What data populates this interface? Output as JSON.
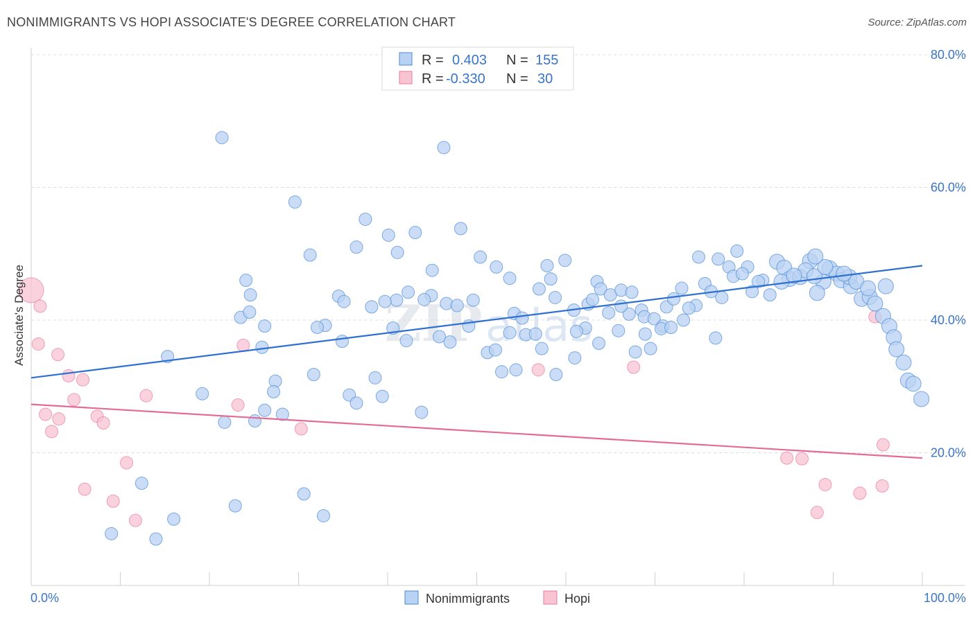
{
  "title": "NONIMMIGRANTS VS HOPI ASSOCIATE'S DEGREE CORRELATION CHART",
  "source": "Source: ZipAtlas.com",
  "colors": {
    "blue": "#4a8ad6",
    "blue_fill": "#b9d2f3",
    "pink": "#e87aa0",
    "pink_fill": "#f8c3d3",
    "axis_text": "#3a74c9"
  },
  "legend": {
    "rows": [
      {
        "r_label": "R =",
        "r_value": "0.403",
        "n_label": "N =",
        "n_value": "155",
        "color": "blue"
      },
      {
        "r_label": "R =",
        "r_value": "-0.330",
        "n_label": "N =",
        "n_value": "30",
        "color": "pink"
      }
    ]
  },
  "bottom_legend": [
    "Nonimmigrants",
    "Hopi"
  ],
  "chart_data": {
    "type": "scatter",
    "xlabel": "",
    "ylabel": "Associate's Degree",
    "xlim": [
      0,
      100
    ],
    "ylim": [
      0,
      80
    ],
    "x_tick_labels": [
      "0.0%",
      "100.0%"
    ],
    "y_tick_labels": [
      "20.0%",
      "40.0%",
      "60.0%",
      "80.0%"
    ],
    "y_ticks": [
      20,
      40,
      60,
      80
    ],
    "grid": "horizontal dashed",
    "series": [
      {
        "name": "Nonimmigrants",
        "color": "blue",
        "trend": [
          [
            0,
            31.3
          ],
          [
            100,
            48.2
          ]
        ],
        "points": [
          [
            21.4,
            67.5
          ],
          [
            46.3,
            66.0
          ],
          [
            29.6,
            57.8
          ],
          [
            37.5,
            55.2
          ],
          [
            40.1,
            52.8
          ],
          [
            43.1,
            53.2
          ],
          [
            48.2,
            53.8
          ],
          [
            36.5,
            51.0
          ],
          [
            41.1,
            50.2
          ],
          [
            45.0,
            47.5
          ],
          [
            31.3,
            49.8
          ],
          [
            50.4,
            49.5
          ],
          [
            52.2,
            48.0
          ],
          [
            57.9,
            48.2
          ],
          [
            59.9,
            49.0
          ],
          [
            53.7,
            46.3
          ],
          [
            58.3,
            46.2
          ],
          [
            24.1,
            46.0
          ],
          [
            24.6,
            43.8
          ],
          [
            23.5,
            40.4
          ],
          [
            24.5,
            41.2
          ],
          [
            26.2,
            39.1
          ],
          [
            34.5,
            43.6
          ],
          [
            38.2,
            42.0
          ],
          [
            35.1,
            42.8
          ],
          [
            42.3,
            44.2
          ],
          [
            41.0,
            43.0
          ],
          [
            44.9,
            43.7
          ],
          [
            46.6,
            42.5
          ],
          [
            49.6,
            43.0
          ],
          [
            47.8,
            42.2
          ],
          [
            54.2,
            41.0
          ],
          [
            55.1,
            40.3
          ],
          [
            57.0,
            44.7
          ],
          [
            58.8,
            43.4
          ],
          [
            60.9,
            41.5
          ],
          [
            62.5,
            42.4
          ],
          [
            63.5,
            45.8
          ],
          [
            63.9,
            44.7
          ],
          [
            65.0,
            43.8
          ],
          [
            66.2,
            44.5
          ],
          [
            67.4,
            44.2
          ],
          [
            68.5,
            41.5
          ],
          [
            67.1,
            40.9
          ],
          [
            68.8,
            40.5
          ],
          [
            69.9,
            40.2
          ],
          [
            70.9,
            39.1
          ],
          [
            71.3,
            42.0
          ],
          [
            73.0,
            44.8
          ],
          [
            74.6,
            42.2
          ],
          [
            75.6,
            45.5
          ],
          [
            76.3,
            44.3
          ],
          [
            74.9,
            49.5
          ],
          [
            77.1,
            49.2
          ],
          [
            78.3,
            48.0
          ],
          [
            78.8,
            46.6
          ],
          [
            79.2,
            50.4
          ],
          [
            80.4,
            48.0
          ],
          [
            82.1,
            46.0
          ],
          [
            81.6,
            45.8
          ],
          [
            82.9,
            43.8
          ],
          [
            83.7,
            48.8
          ],
          [
            84.5,
            47.9
          ],
          [
            85.1,
            46.2
          ],
          [
            86.3,
            46.5
          ],
          [
            87.4,
            48.9
          ],
          [
            88.9,
            45.8
          ],
          [
            88.2,
            44.1
          ],
          [
            89.6,
            47.8
          ],
          [
            90.4,
            47.0
          ],
          [
            90.9,
            46.0
          ],
          [
            92.0,
            45.1
          ],
          [
            93.2,
            43.2
          ],
          [
            94.1,
            43.5
          ],
          [
            94.7,
            42.5
          ],
          [
            95.6,
            40.6
          ],
          [
            96.3,
            39.1
          ],
          [
            96.8,
            37.4
          ],
          [
            97.1,
            35.6
          ],
          [
            97.9,
            33.6
          ],
          [
            98.4,
            30.9
          ],
          [
            99.0,
            30.4
          ],
          [
            99.9,
            28.1
          ],
          [
            15.3,
            34.5
          ],
          [
            25.9,
            35.9
          ],
          [
            27.4,
            30.8
          ],
          [
            31.7,
            31.8
          ],
          [
            27.2,
            29.2
          ],
          [
            26.2,
            26.4
          ],
          [
            25.1,
            24.8
          ],
          [
            21.7,
            24.6
          ],
          [
            19.2,
            28.9
          ],
          [
            28.2,
            25.8
          ],
          [
            33.0,
            39.2
          ],
          [
            34.9,
            36.8
          ],
          [
            39.7,
            42.8
          ],
          [
            40.6,
            38.8
          ],
          [
            42.1,
            36.9
          ],
          [
            44.1,
            43.1
          ],
          [
            47.0,
            36.7
          ],
          [
            45.8,
            37.5
          ],
          [
            51.2,
            35.1
          ],
          [
            52.1,
            35.5
          ],
          [
            52.8,
            32.2
          ],
          [
            54.4,
            32.5
          ],
          [
            55.5,
            37.8
          ],
          [
            56.6,
            37.9
          ],
          [
            57.3,
            35.7
          ],
          [
            58.9,
            31.8
          ],
          [
            61.0,
            34.3
          ],
          [
            62.2,
            38.8
          ],
          [
            63.7,
            36.5
          ],
          [
            65.9,
            38.4
          ],
          [
            67.8,
            35.2
          ],
          [
            68.9,
            37.9
          ],
          [
            69.5,
            35.7
          ],
          [
            70.7,
            38.7
          ],
          [
            72.1,
            43.2
          ],
          [
            73.8,
            41.8
          ],
          [
            76.8,
            37.3
          ],
          [
            79.8,
            47.0
          ],
          [
            80.9,
            44.3
          ],
          [
            84.2,
            45.8
          ],
          [
            86.9,
            47.5
          ],
          [
            87.9,
            46.6
          ],
          [
            89.1,
            48.0
          ],
          [
            91.8,
            46.5
          ],
          [
            92.6,
            45.8
          ],
          [
            22.9,
            12.0
          ],
          [
            12.4,
            15.4
          ],
          [
            9.0,
            7.8
          ],
          [
            16.0,
            10.0
          ],
          [
            30.6,
            13.8
          ],
          [
            32.8,
            10.5
          ],
          [
            14.0,
            7.0
          ],
          [
            38.6,
            31.3
          ],
          [
            35.7,
            28.7
          ],
          [
            36.5,
            27.5
          ],
          [
            32.1,
            38.9
          ],
          [
            43.8,
            26.1
          ],
          [
            39.4,
            28.5
          ],
          [
            49.1,
            39.1
          ],
          [
            53.7,
            38.1
          ],
          [
            61.2,
            38.3
          ],
          [
            64.8,
            41.1
          ],
          [
            66.2,
            42.1
          ],
          [
            73.2,
            40.0
          ],
          [
            71.8,
            38.9
          ],
          [
            77.5,
            43.4
          ],
          [
            85.6,
            46.7
          ],
          [
            93.9,
            44.8
          ],
          [
            88.0,
            49.6
          ],
          [
            91.2,
            47.0
          ],
          [
            95.9,
            45.1
          ],
          [
            63.0,
            43.1
          ]
        ]
      },
      {
        "name": "Hopi",
        "color": "pink",
        "trend": [
          [
            0,
            27.3
          ],
          [
            100,
            19.2
          ]
        ],
        "points": [
          [
            0.0,
            44.5
          ],
          [
            1.0,
            42.1
          ],
          [
            0.8,
            36.4
          ],
          [
            3.0,
            34.8
          ],
          [
            4.2,
            31.6
          ],
          [
            5.8,
            31.0
          ],
          [
            4.8,
            28.0
          ],
          [
            1.6,
            25.8
          ],
          [
            3.1,
            25.1
          ],
          [
            7.4,
            25.5
          ],
          [
            8.1,
            24.5
          ],
          [
            2.3,
            23.2
          ],
          [
            12.9,
            28.6
          ],
          [
            10.7,
            18.5
          ],
          [
            6.0,
            14.5
          ],
          [
            9.2,
            12.7
          ],
          [
            11.7,
            9.8
          ],
          [
            23.2,
            27.2
          ],
          [
            23.8,
            36.2
          ],
          [
            30.3,
            23.6
          ],
          [
            56.9,
            32.5
          ],
          [
            67.6,
            32.9
          ],
          [
            94.7,
            40.5
          ],
          [
            84.8,
            19.2
          ],
          [
            86.5,
            19.1
          ],
          [
            89.1,
            15.2
          ],
          [
            93.0,
            13.9
          ],
          [
            95.6,
            21.2
          ],
          [
            95.5,
            15.0
          ],
          [
            88.2,
            11.0
          ]
        ]
      }
    ]
  }
}
